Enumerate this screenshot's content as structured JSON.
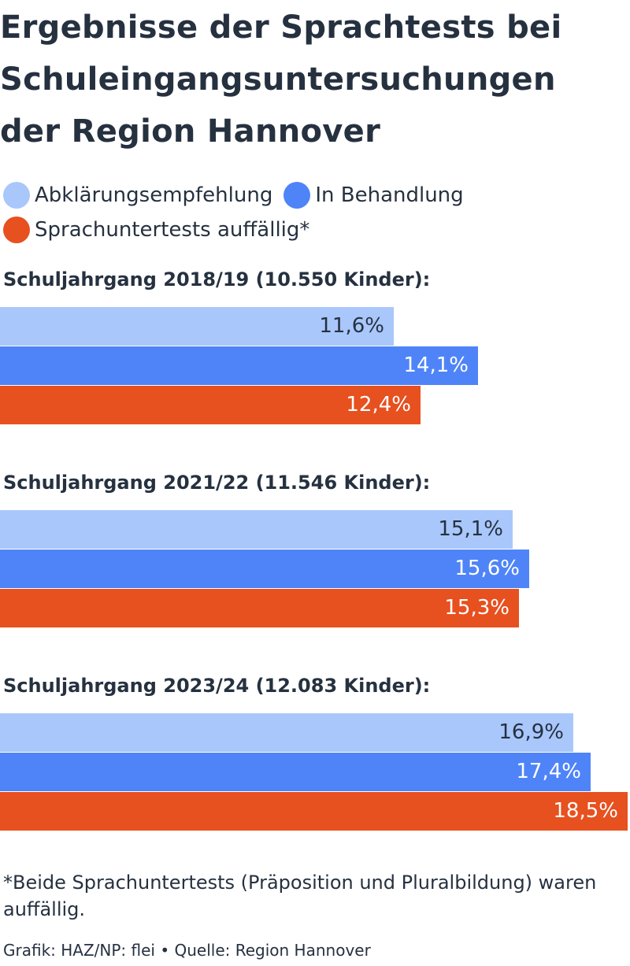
{
  "title_lines": [
    "Ergebnisse der Sprachtests bei",
    "Schuleingangsuntersuchungen",
    "der Region Hannover"
  ],
  "legend": [
    {
      "label": "Abklärungsempfehlung",
      "color": "#a9c7fb"
    },
    {
      "label": "In Behandlung",
      "color": "#4f84f8"
    },
    {
      "label": "Sprachuntertests auffällig*",
      "color": "#e7501f"
    }
  ],
  "chart_data": {
    "type": "bar",
    "orientation": "horizontal",
    "title": "Ergebnisse der Sprachtests bei Schuleingangsuntersuchungen der Region Hannover",
    "series_names": [
      "Abklärungsempfehlung",
      "In Behandlung",
      "Sprachuntertests auffällig*"
    ],
    "series_colors": [
      "#a9c7fb",
      "#4f84f8",
      "#e7501f"
    ],
    "label_colors": [
      "#263140",
      "#ffffff",
      "#ffffff"
    ],
    "xlim": [
      0,
      18.5
    ],
    "groups": [
      {
        "title": "Schuljahrgang 2018/19 (10.550 Kinder):",
        "values": [
          11.6,
          14.1,
          12.4
        ],
        "labels": [
          "11,6%",
          "14,1%",
          "12,4%"
        ]
      },
      {
        "title": "Schuljahrgang 2021/22 (11.546 Kinder):",
        "values": [
          15.1,
          15.6,
          15.3
        ],
        "labels": [
          "15,1%",
          "15,6%",
          "15,3%"
        ]
      },
      {
        "title": "Schuljahrgang 2023/24 (12.083 Kinder):",
        "values": [
          16.9,
          17.4,
          18.5
        ],
        "labels": [
          "16,9%",
          "17,4%",
          "18,5%"
        ]
      }
    ]
  },
  "footnote": "*Beide Sprachuntertests (Präposition und Pluralbildung) waren auffällig.",
  "source": "Grafik: HAZ/NP: flei • Quelle: Region Hannover"
}
